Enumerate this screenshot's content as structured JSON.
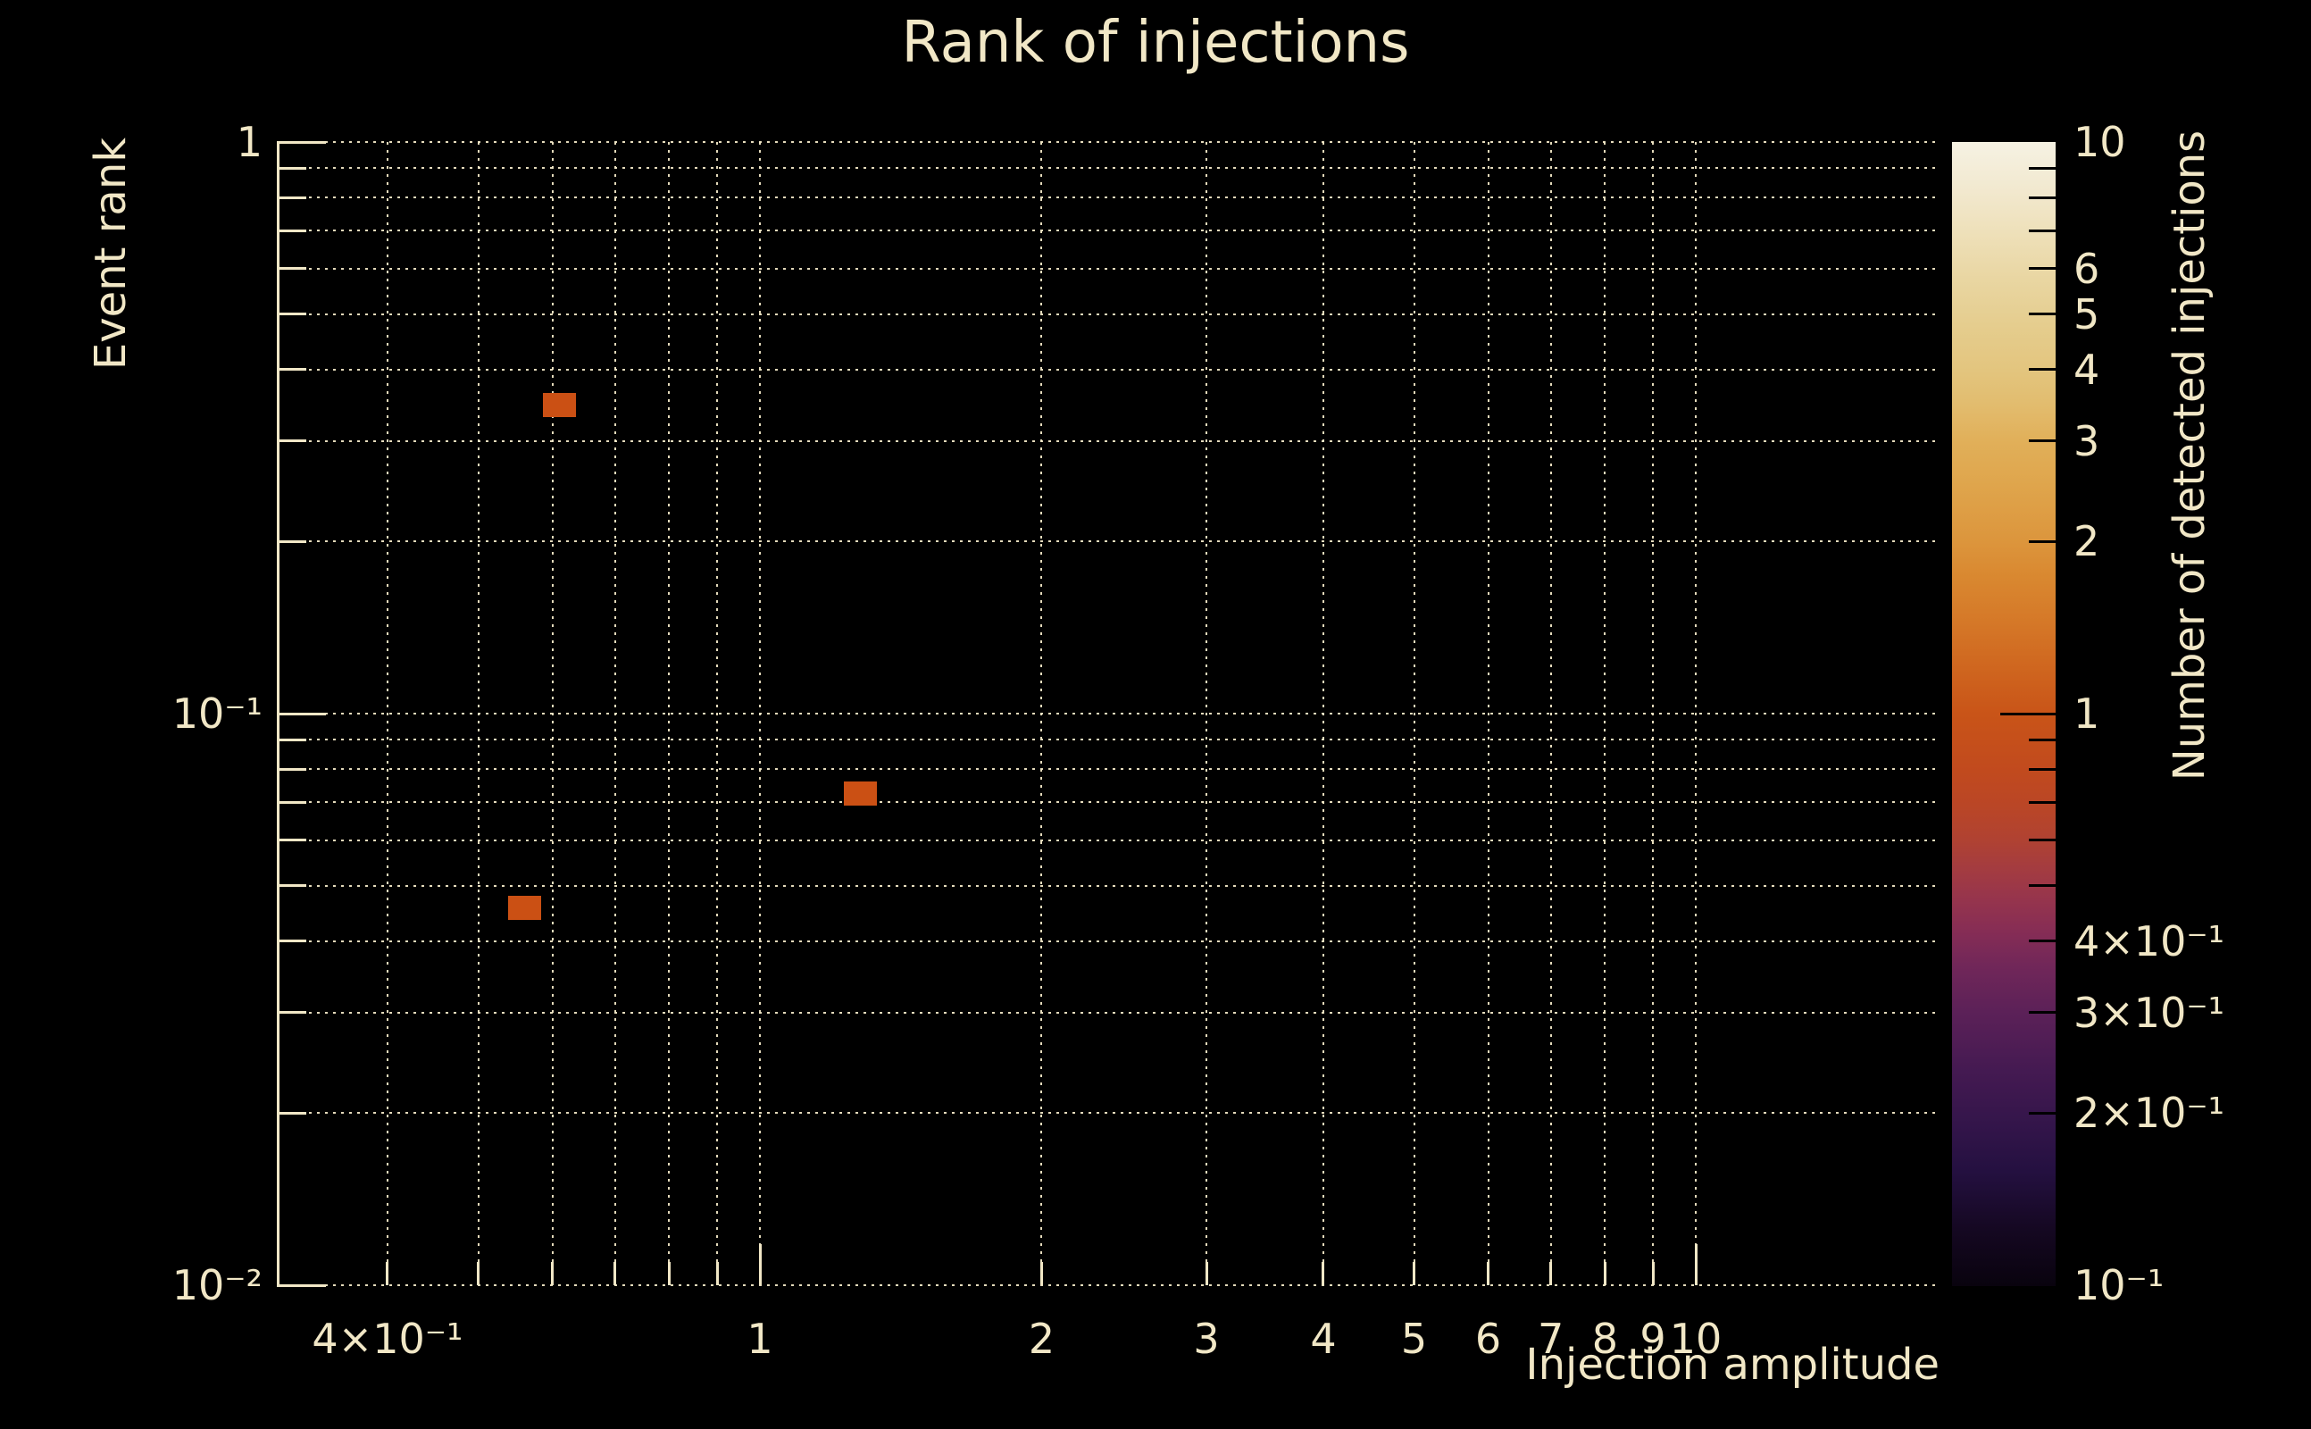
{
  "title": "Rank of injections",
  "colors": {
    "background": "#000000",
    "foreground": "#f1e7c6",
    "bin_fill": "#cb5014",
    "colorbar_tick": "#000000"
  },
  "chart_data": {
    "type": "heatmap",
    "title": "Rank of injections",
    "xlabel": "Injection amplitude",
    "ylabel": "Event rank",
    "colorbar_label": "Number of detected injections",
    "x_scale": "log",
    "y_scale": "log",
    "color_scale": "log",
    "xlim": [
      0.305,
      18.2
    ],
    "ylim": [
      0.01,
      1
    ],
    "clim": [
      0.1,
      10
    ],
    "grid": "dotted-minor-and-major",
    "legend_position": "colorbar-right",
    "x_ticks": [
      {
        "value": 0.4,
        "label": "4×10⁻¹",
        "major": false
      },
      {
        "value": 0.5,
        "label": "",
        "major": false
      },
      {
        "value": 0.6,
        "label": "",
        "major": false
      },
      {
        "value": 0.7,
        "label": "",
        "major": false
      },
      {
        "value": 0.8,
        "label": "",
        "major": false
      },
      {
        "value": 0.9,
        "label": "",
        "major": false
      },
      {
        "value": 1,
        "label": "1",
        "major": true
      },
      {
        "value": 2,
        "label": "2",
        "major": false
      },
      {
        "value": 3,
        "label": "3",
        "major": false
      },
      {
        "value": 4,
        "label": "4",
        "major": false
      },
      {
        "value": 5,
        "label": "5",
        "major": false
      },
      {
        "value": 6,
        "label": "6",
        "major": false
      },
      {
        "value": 7,
        "label": "7",
        "major": false
      },
      {
        "value": 8,
        "label": "8",
        "major": false
      },
      {
        "value": 9,
        "label": "9",
        "major": false
      },
      {
        "value": 10,
        "label": "10",
        "major": true
      }
    ],
    "y_ticks": [
      {
        "value": 1,
        "label": "1",
        "major": true
      },
      {
        "value": 0.9,
        "label": "",
        "major": false
      },
      {
        "value": 0.8,
        "label": "",
        "major": false
      },
      {
        "value": 0.7,
        "label": "",
        "major": false
      },
      {
        "value": 0.6,
        "label": "",
        "major": false
      },
      {
        "value": 0.5,
        "label": "",
        "major": false
      },
      {
        "value": 0.4,
        "label": "",
        "major": false
      },
      {
        "value": 0.3,
        "label": "",
        "major": false
      },
      {
        "value": 0.2,
        "label": "",
        "major": false
      },
      {
        "value": 0.1,
        "label": "10⁻¹",
        "major": true
      },
      {
        "value": 0.09,
        "label": "",
        "major": false
      },
      {
        "value": 0.08,
        "label": "",
        "major": false
      },
      {
        "value": 0.07,
        "label": "",
        "major": false
      },
      {
        "value": 0.06,
        "label": "",
        "major": false
      },
      {
        "value": 0.05,
        "label": "",
        "major": false
      },
      {
        "value": 0.04,
        "label": "",
        "major": false
      },
      {
        "value": 0.03,
        "label": "",
        "major": false
      },
      {
        "value": 0.02,
        "label": "",
        "major": false
      },
      {
        "value": 0.01,
        "label": "10⁻²",
        "major": true
      }
    ],
    "colorbar_ticks": [
      {
        "value": 10,
        "label": "10",
        "major": true
      },
      {
        "value": 9,
        "label": "",
        "major": false
      },
      {
        "value": 8,
        "label": "",
        "major": false
      },
      {
        "value": 7,
        "label": "",
        "major": false
      },
      {
        "value": 6,
        "label": "6",
        "major": false
      },
      {
        "value": 5,
        "label": "5",
        "major": false
      },
      {
        "value": 4,
        "label": "4",
        "major": false
      },
      {
        "value": 3,
        "label": "3",
        "major": false
      },
      {
        "value": 2,
        "label": "2",
        "major": false
      },
      {
        "value": 1,
        "label": "1",
        "major": true
      },
      {
        "value": 0.9,
        "label": "",
        "major": false
      },
      {
        "value": 0.8,
        "label": "",
        "major": false
      },
      {
        "value": 0.7,
        "label": "",
        "major": false
      },
      {
        "value": 0.6,
        "label": "",
        "major": false
      },
      {
        "value": 0.5,
        "label": "",
        "major": false
      },
      {
        "value": 0.4,
        "label": "4×10⁻¹",
        "major": false
      },
      {
        "value": 0.3,
        "label": "3×10⁻¹",
        "major": false
      },
      {
        "value": 0.2,
        "label": "2×10⁻¹",
        "major": false
      },
      {
        "value": 0.1,
        "label": "10⁻¹",
        "major": true
      }
    ],
    "colorbar_gradient_stops": [
      [
        0,
        "#09030e"
      ],
      [
        5,
        "#150822"
      ],
      [
        10,
        "#241040"
      ],
      [
        14,
        "#33154a"
      ],
      [
        19,
        "#451a52"
      ],
      [
        24,
        "#5c2158"
      ],
      [
        28,
        "#712759"
      ],
      [
        31,
        "#862d55"
      ],
      [
        34,
        "#97354c"
      ],
      [
        36.5,
        "#a43c40"
      ],
      [
        39,
        "#b04232"
      ],
      [
        42,
        "#ba4626"
      ],
      [
        45,
        "#c14a1e"
      ],
      [
        50,
        "#c95418"
      ],
      [
        54,
        "#cf661f"
      ],
      [
        58,
        "#d57828"
      ],
      [
        62,
        "#d98830"
      ],
      [
        65,
        "#dc953c"
      ],
      [
        70,
        "#dfa54c"
      ],
      [
        74,
        "#e1b05a"
      ],
      [
        77,
        "#e2bc6e"
      ],
      [
        80,
        "#e3c57e"
      ],
      [
        84,
        "#e5cd8e"
      ],
      [
        88,
        "#e9d6a2"
      ],
      [
        92,
        "#eee0b9"
      ],
      [
        96,
        "#f2e9d0"
      ],
      [
        100,
        "#f6f2e3"
      ]
    ],
    "points": [
      {
        "amplitude": 0.61,
        "rank": 0.347,
        "count": 1
      },
      {
        "amplitude": 1.28,
        "rank": 0.0725,
        "count": 1
      },
      {
        "amplitude": 0.56,
        "rank": 0.0457,
        "count": 1
      }
    ],
    "bin_size_px": {
      "w": 37,
      "h": 27
    }
  }
}
